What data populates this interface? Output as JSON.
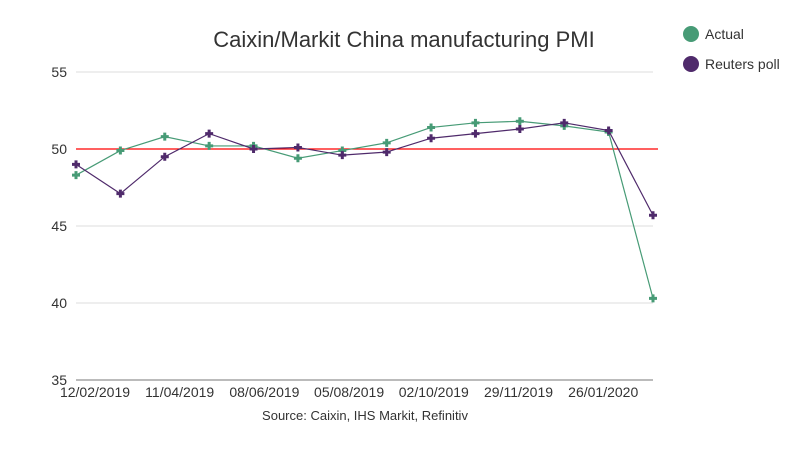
{
  "chart_data": {
    "type": "line",
    "title": "Caixin/Markit China manufacturing PMI",
    "source": "Source: Caixin, IHS Markit, Refinitiv",
    "xlabel": "",
    "ylabel": "",
    "ylim": [
      35,
      55
    ],
    "yticks": [
      35,
      40,
      45,
      50,
      55
    ],
    "xtick_labels": [
      "12/02/2019",
      "11/04/2019",
      "08/06/2019",
      "05/08/2019",
      "02/10/2019",
      "29/11/2019",
      "26/01/2020"
    ],
    "reference_line": 50,
    "grid": true,
    "legend_position": "top-right",
    "series": [
      {
        "name": "Actual",
        "color": "#479b76",
        "values": [
          48.3,
          49.9,
          50.8,
          50.2,
          50.2,
          49.4,
          49.9,
          50.4,
          51.4,
          51.7,
          51.8,
          51.5,
          51.1,
          40.3
        ]
      },
      {
        "name": "Reuters poll",
        "color": "#4f2a6b",
        "values": [
          49.0,
          47.1,
          49.5,
          51.0,
          50.0,
          50.1,
          49.6,
          49.8,
          50.7,
          51.0,
          51.3,
          51.7,
          51.2,
          45.7
        ]
      }
    ]
  }
}
